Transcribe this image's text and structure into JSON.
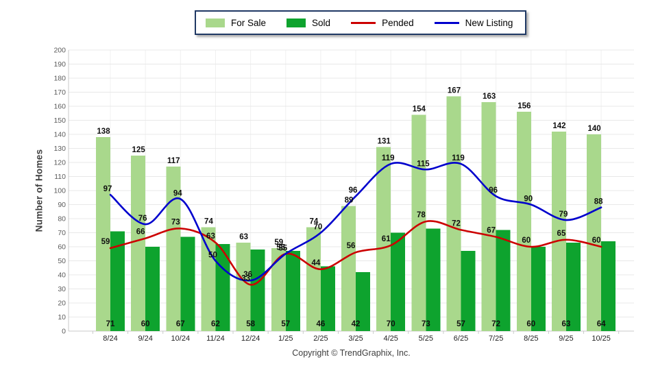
{
  "chart_data": {
    "type": "bar+line combo",
    "title": "",
    "categories": [
      "8/24",
      "9/24",
      "10/24",
      "11/24",
      "12/24",
      "1/25",
      "2/25",
      "3/25",
      "4/25",
      "5/25",
      "6/25",
      "7/25",
      "8/25",
      "9/25",
      "10/25"
    ],
    "series": [
      {
        "name": "For Sale",
        "type": "bar",
        "color": "#a9d88c",
        "values": [
          138,
          125,
          117,
          74,
          63,
          59,
          74,
          89,
          131,
          154,
          167,
          163,
          156,
          142,
          140
        ]
      },
      {
        "name": "Sold",
        "type": "bar",
        "color": "#0ea32e",
        "values": [
          71,
          60,
          67,
          62,
          58,
          57,
          46,
          42,
          70,
          73,
          57,
          72,
          60,
          63,
          64
        ]
      },
      {
        "name": "Pended",
        "type": "line",
        "color": "#cc0000",
        "values": [
          59,
          66,
          73,
          63,
          33,
          55,
          44,
          56,
          61,
          78,
          72,
          67,
          60,
          65,
          60
        ]
      },
      {
        "name": "New Listing",
        "type": "line",
        "color": "#0000cd",
        "values": [
          97,
          76,
          94,
          50,
          36,
          55,
          70,
          96,
          119,
          115,
          119,
          96,
          90,
          79,
          88
        ]
      }
    ],
    "xlabel": "",
    "ylabel": "Number of Homes",
    "ylim": [
      0,
      200
    ],
    "ytick_step": 10,
    "grid": true,
    "legend_position": "top"
  },
  "footer": {
    "copyright": "Copyright © TrendGraphix, Inc."
  },
  "colors": {
    "legend_border": "#1f3864",
    "gridline": "#e8e8e8",
    "vertical_gridline": "#f0f0f0",
    "axis_line": "#c9c9c9",
    "data_label": "#0f0f0f",
    "y_tick_label": "#5a5a5a",
    "x_tick_label": "#1f1f1f"
  }
}
